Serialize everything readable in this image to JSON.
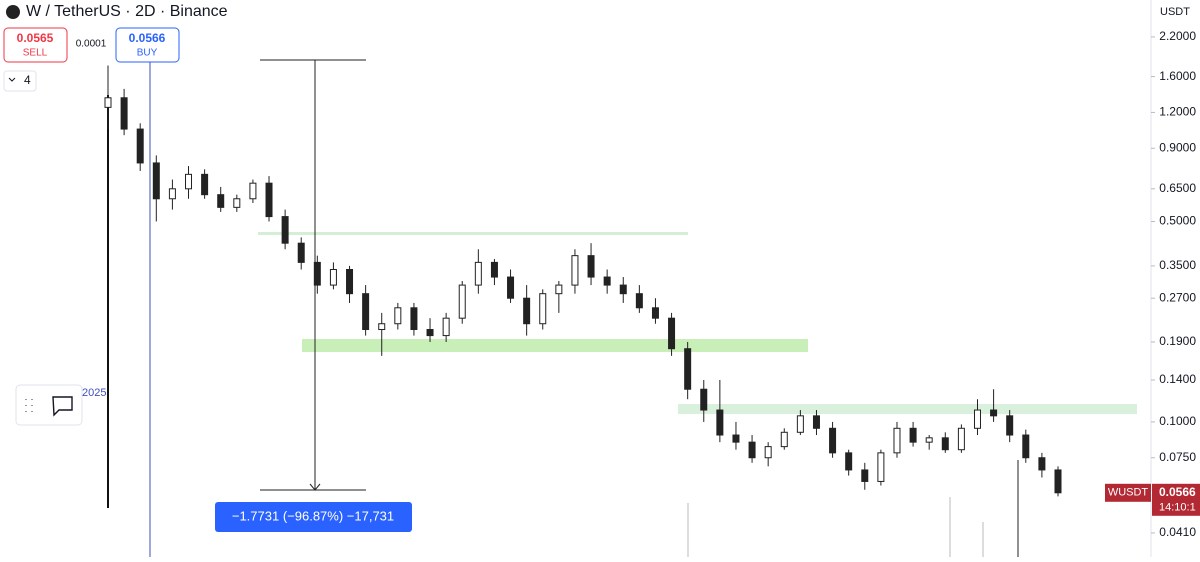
{
  "chart_data": {
    "type": "candlestick",
    "title": "W / TetherUS · 2D · Binance",
    "y_unit": "USDT",
    "log_scale": true,
    "ylim": [
      0.0338,
      2.96
    ],
    "yticks": [
      {
        "value": 2.2,
        "label": "2.2000"
      },
      {
        "value": 1.6,
        "label": "1.6000"
      },
      {
        "value": 1.2,
        "label": "1.2000"
      },
      {
        "value": 0.9,
        "label": "0.9000"
      },
      {
        "value": 0.65,
        "label": "0.6500"
      },
      {
        "value": 0.5,
        "label": "0.5000"
      },
      {
        "value": 0.35,
        "label": "0.3500"
      },
      {
        "value": 0.27,
        "label": "0.2700"
      },
      {
        "value": 0.19,
        "label": "0.1900"
      },
      {
        "value": 0.14,
        "label": "0.1400"
      },
      {
        "value": 0.1,
        "label": "0.1000"
      },
      {
        "value": 0.075,
        "label": "0.0750"
      },
      {
        "value": 0.041,
        "label": "0.0410"
      }
    ],
    "series": [
      {
        "name": "WUSDT",
        "open": [
          1.25,
          1.35,
          1.05,
          0.8,
          0.6,
          0.65,
          0.73,
          0.62,
          0.56,
          0.6,
          0.68,
          0.52,
          0.42,
          0.36,
          0.3,
          0.34,
          0.28,
          0.21,
          0.22,
          0.25,
          0.21,
          0.2,
          0.23,
          0.3,
          0.36,
          0.32,
          0.27,
          0.22,
          0.28,
          0.3,
          0.38,
          0.32,
          0.3,
          0.28,
          0.25,
          0.23,
          0.18,
          0.13,
          0.11,
          0.09,
          0.085,
          0.075,
          0.082,
          0.092,
          0.105,
          0.095,
          0.078,
          0.068,
          0.062,
          0.078,
          0.095,
          0.085,
          0.088,
          0.08,
          0.095,
          0.11,
          0.105,
          0.09,
          0.075,
          0.068
        ],
        "high": [
          1.75,
          1.45,
          1.1,
          0.85,
          0.7,
          0.78,
          0.76,
          0.66,
          0.62,
          0.7,
          0.72,
          0.55,
          0.44,
          0.38,
          0.36,
          0.35,
          0.3,
          0.24,
          0.26,
          0.26,
          0.23,
          0.24,
          0.31,
          0.4,
          0.37,
          0.34,
          0.3,
          0.29,
          0.31,
          0.4,
          0.42,
          0.34,
          0.32,
          0.3,
          0.27,
          0.24,
          0.19,
          0.14,
          0.14,
          0.1,
          0.09,
          0.085,
          0.095,
          0.11,
          0.11,
          0.1,
          0.08,
          0.072,
          0.08,
          0.1,
          0.1,
          0.09,
          0.092,
          0.098,
          0.12,
          0.13,
          0.11,
          0.094,
          0.078,
          0.07
        ],
        "low": [
          1.05,
          1.0,
          0.75,
          0.5,
          0.55,
          0.6,
          0.6,
          0.54,
          0.54,
          0.58,
          0.5,
          0.4,
          0.34,
          0.28,
          0.29,
          0.26,
          0.2,
          0.17,
          0.21,
          0.2,
          0.19,
          0.19,
          0.22,
          0.28,
          0.3,
          0.26,
          0.2,
          0.21,
          0.24,
          0.28,
          0.3,
          0.28,
          0.26,
          0.24,
          0.22,
          0.17,
          0.12,
          0.1,
          0.085,
          0.08,
          0.072,
          0.07,
          0.08,
          0.09,
          0.09,
          0.075,
          0.065,
          0.058,
          0.06,
          0.075,
          0.082,
          0.08,
          0.078,
          0.078,
          0.09,
          0.1,
          0.085,
          0.072,
          0.064,
          0.055
        ],
        "close": [
          1.35,
          1.05,
          0.8,
          0.6,
          0.65,
          0.73,
          0.62,
          0.56,
          0.6,
          0.68,
          0.52,
          0.42,
          0.36,
          0.3,
          0.34,
          0.28,
          0.21,
          0.22,
          0.25,
          0.21,
          0.2,
          0.23,
          0.3,
          0.36,
          0.32,
          0.27,
          0.22,
          0.28,
          0.3,
          0.38,
          0.32,
          0.3,
          0.28,
          0.25,
          0.23,
          0.18,
          0.13,
          0.11,
          0.09,
          0.085,
          0.075,
          0.082,
          0.092,
          0.105,
          0.095,
          0.078,
          0.068,
          0.062,
          0.078,
          0.095,
          0.085,
          0.088,
          0.08,
          0.095,
          0.11,
          0.105,
          0.09,
          0.075,
          0.068,
          0.0566
        ]
      }
    ],
    "last_price": 0.0566,
    "countdown": "14:10:1",
    "annotation": "2025",
    "measure": "−1.7731 (−96.87%) −17,731"
  },
  "trade_panel": {
    "sell_price": "0.0565",
    "sell": "SELL",
    "spread": "0.0001",
    "buy_price": "0.0566",
    "buy": "BUY",
    "quantity": "4"
  }
}
